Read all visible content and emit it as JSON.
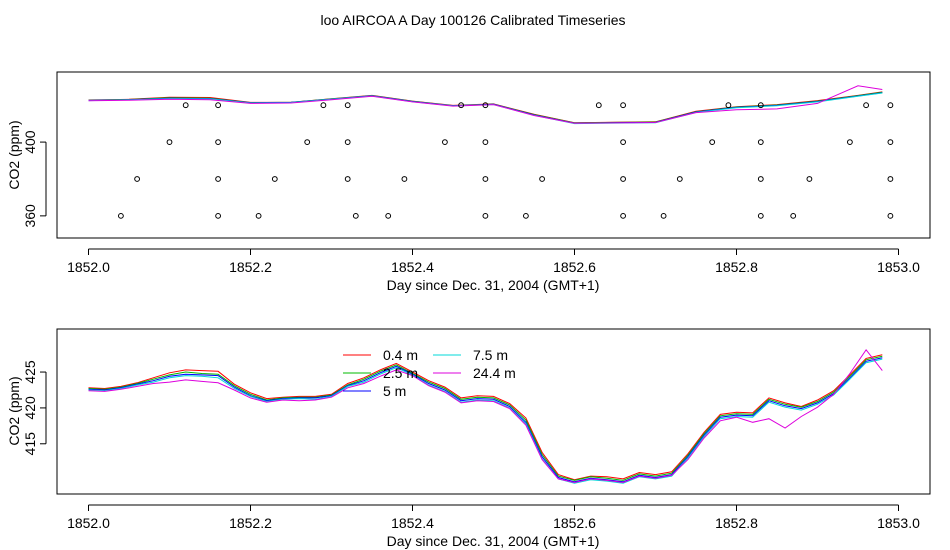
{
  "page": {
    "title": "loo AIRCOA A  Day 100126  Calibrated Timeseries"
  },
  "colors": {
    "c04": "#ff0000",
    "c25": "#00bb00",
    "c5": "#0000ff",
    "c75": "#00d8d8",
    "c244": "#dd00dd",
    "axis": "#000000"
  },
  "chart_data": [
    {
      "type": "line",
      "xlabel": "Day since Dec. 31, 2004 (GMT+1)",
      "ylabel": "CO2 (ppm)",
      "xlim": [
        1852.0,
        1853.0
      ],
      "ylim": [
        348,
        438
      ],
      "xticks": [
        1852.0,
        1852.2,
        1852.4,
        1852.6,
        1852.8,
        1853.0
      ],
      "xtick_labels": [
        "1852.0",
        "1852.2",
        "1852.4",
        "1852.6",
        "1852.8",
        "1853.0"
      ],
      "yticks": [
        360,
        400
      ],
      "ytick_labels": [
        "360",
        "400"
      ],
      "x": [
        1852.0,
        1852.05,
        1852.1,
        1852.15,
        1852.2,
        1852.25,
        1852.3,
        1852.35,
        1852.4,
        1852.45,
        1852.5,
        1852.55,
        1852.6,
        1852.65,
        1852.7,
        1852.75,
        1852.8,
        1852.85,
        1852.9,
        1852.95,
        1852.98
      ],
      "series": [
        {
          "color": "c04",
          "values": [
            422.8,
            423.2,
            424.3,
            424.2,
            421.5,
            421.5,
            423.5,
            425.3,
            422.2,
            419.9,
            420.7,
            415.1,
            410.5,
            410.8,
            411.0,
            416.7,
            419.2,
            420.3,
            422.5,
            425.3,
            427.2
          ]
        },
        {
          "color": "c25",
          "values": [
            422.7,
            423.1,
            424.0,
            423.8,
            421.4,
            421.6,
            423.4,
            425.2,
            422.1,
            419.8,
            420.6,
            414.9,
            410.4,
            410.7,
            410.9,
            416.5,
            419.0,
            420.1,
            422.2,
            425.2,
            427.0
          ]
        },
        {
          "color": "c5",
          "values": [
            422.6,
            423.0,
            423.8,
            423.6,
            421.3,
            421.5,
            423.3,
            425.1,
            422.0,
            419.7,
            420.5,
            414.7,
            410.2,
            410.5,
            410.7,
            416.3,
            418.8,
            419.9,
            422.0,
            425.0,
            426.8
          ]
        },
        {
          "color": "c75",
          "values": [
            422.5,
            422.9,
            423.6,
            423.4,
            421.2,
            421.4,
            423.2,
            425.0,
            421.9,
            419.6,
            420.4,
            414.5,
            410.0,
            410.3,
            410.5,
            416.1,
            418.6,
            419.7,
            421.8,
            424.8,
            426.6
          ]
        },
        {
          "color": "c244",
          "values": [
            422.4,
            422.7,
            423.2,
            423.0,
            421.0,
            421.2,
            423.0,
            424.8,
            421.8,
            419.5,
            420.3,
            414.4,
            410.2,
            410.4,
            410.6,
            416.0,
            417.5,
            418.0,
            421.0,
            430.5,
            428.5
          ]
        }
      ],
      "annotations": {
        "bucket_rows": [
          420,
          400,
          380,
          360
        ],
        "bucket_points": [
          [
            1852.12,
            1852.16,
            1852.29,
            1852.32,
            1852.46,
            1852.49,
            1852.63,
            1852.66,
            1852.79,
            1852.83,
            1852.96,
            1852.99
          ],
          [
            1852.1,
            1852.16,
            1852.27,
            1852.32,
            1852.44,
            1852.49,
            1852.66,
            1852.77,
            1852.83,
            1852.94,
            1852.99
          ],
          [
            1852.06,
            1852.16,
            1852.23,
            1852.32,
            1852.39,
            1852.49,
            1852.56,
            1852.66,
            1852.73,
            1852.83,
            1852.89,
            1852.99
          ],
          [
            1852.04,
            1852.16,
            1852.21,
            1852.33,
            1852.37,
            1852.49,
            1852.54,
            1852.66,
            1852.71,
            1852.83,
            1852.87,
            1852.99
          ]
        ]
      }
    },
    {
      "type": "line",
      "xlabel": "Day since Dec. 31, 2004 (GMT+1)",
      "ylabel": "CO2 (ppm)",
      "xlim": [
        1852.0,
        1853.0
      ],
      "ylim": [
        408,
        431
      ],
      "xticks": [
        1852.0,
        1852.2,
        1852.4,
        1852.6,
        1852.8,
        1853.0
      ],
      "xtick_labels": [
        "1852.0",
        "1852.2",
        "1852.4",
        "1852.6",
        "1852.8",
        "1853.0"
      ],
      "yticks": [
        415,
        420,
        425
      ],
      "ytick_labels": [
        "415",
        "420",
        "425"
      ],
      "legend_position": "top-center",
      "x": [
        1852.0,
        1852.02,
        1852.04,
        1852.06,
        1852.08,
        1852.1,
        1852.12,
        1852.14,
        1852.16,
        1852.18,
        1852.2,
        1852.22,
        1852.24,
        1852.26,
        1852.28,
        1852.3,
        1852.32,
        1852.34,
        1852.36,
        1852.38,
        1852.4,
        1852.42,
        1852.44,
        1852.46,
        1852.48,
        1852.5,
        1852.52,
        1852.54,
        1852.56,
        1852.58,
        1852.6,
        1852.62,
        1852.64,
        1852.66,
        1852.68,
        1852.7,
        1852.72,
        1852.74,
        1852.76,
        1852.78,
        1852.8,
        1852.82,
        1852.84,
        1852.86,
        1852.88,
        1852.9,
        1852.92,
        1852.94,
        1852.96,
        1852.98
      ],
      "series": [
        {
          "name": "0.4 m",
          "color": "c04",
          "values": [
            422.8,
            422.7,
            423.0,
            423.5,
            424.2,
            424.9,
            425.3,
            425.2,
            425.1,
            423.3,
            422.1,
            421.3,
            421.5,
            421.6,
            421.6,
            421.9,
            423.4,
            424.2,
            425.3,
            426.2,
            425.0,
            423.8,
            422.9,
            421.4,
            421.7,
            421.6,
            420.6,
            418.6,
            413.8,
            410.7,
            410.0,
            410.5,
            410.4,
            410.1,
            411.0,
            410.7,
            411.1,
            413.6,
            416.6,
            419.1,
            419.4,
            419.3,
            421.4,
            420.7,
            420.2,
            421.1,
            422.4,
            424.6,
            426.9,
            427.4
          ]
        },
        {
          "name": "2.5 m",
          "color": "c25",
          "values": [
            422.7,
            422.6,
            422.9,
            423.4,
            424.0,
            424.6,
            425.0,
            424.8,
            424.7,
            423.1,
            421.9,
            421.1,
            421.4,
            421.5,
            421.5,
            421.8,
            423.2,
            424.0,
            425.1,
            426.0,
            424.8,
            423.6,
            422.7,
            421.2,
            421.5,
            421.4,
            420.4,
            418.3,
            413.5,
            410.5,
            409.9,
            410.4,
            410.2,
            409.9,
            410.8,
            410.5,
            410.9,
            413.4,
            416.4,
            418.9,
            419.2,
            419.1,
            421.2,
            420.5,
            420.1,
            420.9,
            422.2,
            424.4,
            426.7,
            427.2
          ]
        },
        {
          "name": "5 m",
          "color": "c5",
          "values": [
            422.6,
            422.5,
            422.8,
            423.3,
            423.8,
            424.4,
            424.7,
            424.6,
            424.5,
            422.9,
            421.7,
            421.0,
            421.3,
            421.4,
            421.4,
            421.7,
            423.1,
            423.8,
            424.9,
            425.8,
            424.7,
            423.4,
            422.5,
            421.0,
            421.3,
            421.2,
            420.2,
            418.0,
            413.2,
            410.3,
            409.7,
            410.2,
            410.0,
            409.7,
            410.6,
            410.3,
            410.7,
            413.2,
            416.2,
            418.7,
            419.0,
            418.9,
            421.0,
            420.3,
            419.9,
            420.7,
            422.0,
            424.2,
            426.5,
            427.0
          ]
        },
        {
          "name": "7.5 m",
          "color": "c75",
          "values": [
            422.5,
            422.4,
            422.7,
            423.2,
            423.6,
            424.2,
            424.5,
            424.4,
            424.2,
            422.7,
            421.6,
            420.9,
            421.2,
            421.3,
            421.2,
            421.6,
            423.0,
            423.6,
            424.7,
            425.6,
            424.6,
            423.2,
            422.3,
            420.8,
            421.1,
            421.0,
            420.0,
            417.8,
            412.9,
            410.1,
            409.5,
            410.0,
            409.8,
            409.5,
            410.4,
            410.1,
            410.5,
            413.0,
            416.0,
            418.5,
            418.8,
            418.7,
            420.8,
            420.1,
            419.7,
            420.5,
            421.8,
            424.0,
            426.3,
            426.8
          ]
        },
        {
          "name": "24.4 m",
          "color": "c244",
          "values": [
            422.4,
            422.3,
            422.6,
            423.0,
            423.4,
            423.6,
            423.9,
            423.7,
            423.5,
            422.5,
            421.4,
            420.8,
            421.1,
            421.0,
            421.1,
            421.5,
            422.8,
            423.4,
            424.4,
            425.3,
            424.5,
            423.1,
            422.2,
            420.7,
            421.0,
            420.9,
            419.9,
            417.6,
            412.8,
            410.1,
            409.6,
            410.1,
            409.9,
            409.6,
            410.5,
            410.2,
            410.6,
            412.8,
            415.8,
            418.2,
            418.7,
            418.0,
            418.5,
            417.2,
            418.8,
            420.1,
            421.9,
            424.8,
            428.1,
            425.2
          ]
        }
      ]
    }
  ]
}
